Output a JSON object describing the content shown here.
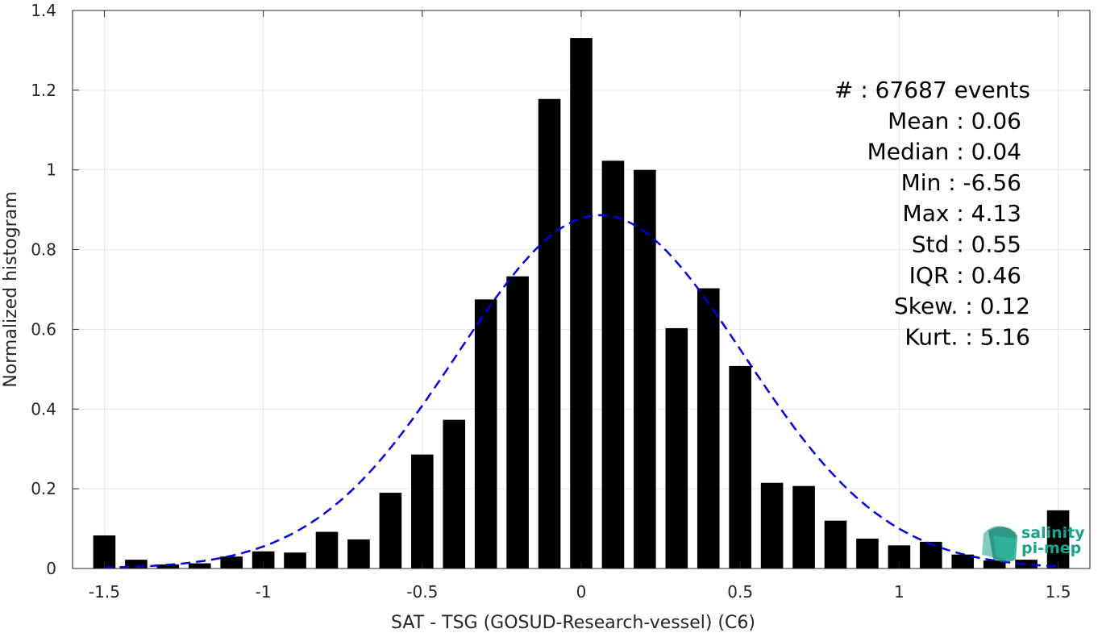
{
  "chart_data": {
    "type": "bar",
    "xlabel": "SAT - TSG (GOSUD-Research-vessel) (C6)",
    "ylabel": "Normalized histogram",
    "xlim": [
      -1.6,
      1.6
    ],
    "ylim": [
      0,
      1.4
    ],
    "xticks": [
      -1.5,
      -1,
      -0.5,
      0,
      0.5,
      1,
      1.5
    ],
    "xtick_labels": [
      "-1.5",
      "-1",
      "-0.5",
      "0",
      "0.5",
      "1",
      "1.5"
    ],
    "yticks": [
      0,
      0.2,
      0.4,
      0.6,
      0.8,
      1,
      1.2,
      1.4
    ],
    "ytick_labels": [
      "0",
      "0.2",
      "0.4",
      "0.6",
      "0.8",
      "1",
      "1.2",
      "1.4"
    ],
    "grid": true,
    "bar_width": 0.07,
    "bars": {
      "x": [
        -1.5,
        -1.4,
        -1.3,
        -1.2,
        -1.1,
        -1.0,
        -0.9,
        -0.8,
        -0.7,
        -0.6,
        -0.5,
        -0.4,
        -0.3,
        -0.2,
        -0.1,
        0.0,
        0.1,
        0.2,
        0.3,
        0.4,
        0.5,
        0.6,
        0.7,
        0.8,
        0.9,
        1.0,
        1.1,
        1.2,
        1.3,
        1.4,
        1.5
      ],
      "values": [
        0.083,
        0.022,
        0.01,
        0.013,
        0.03,
        0.043,
        0.04,
        0.092,
        0.073,
        0.19,
        0.286,
        0.373,
        0.675,
        0.733,
        1.178,
        1.331,
        1.023,
        1.0,
        0.603,
        0.703,
        0.508,
        0.215,
        0.207,
        0.12,
        0.075,
        0.058,
        0.067,
        0.035,
        0.02,
        0.022,
        0.146
      ],
      "color": "#000000"
    },
    "fit": {
      "type": "gaussian",
      "mean": 0.06,
      "std": 0.45,
      "x_range": [
        -1.5,
        1.5
      ],
      "color": "#0000dd",
      "style": "dashed"
    },
    "annotations": [
      "#  : 67687 events",
      "Mean : 0.06",
      "Median : 0.04",
      "Min : -6.56",
      "Max : 4.13",
      "Std : 0.55",
      "IQR : 0.46",
      "Skew. : 0.12",
      "Kurt. : 5.16"
    ]
  },
  "logo": {
    "line1": "salinity",
    "line2": "pi-mep",
    "color": "#1aa38c"
  }
}
